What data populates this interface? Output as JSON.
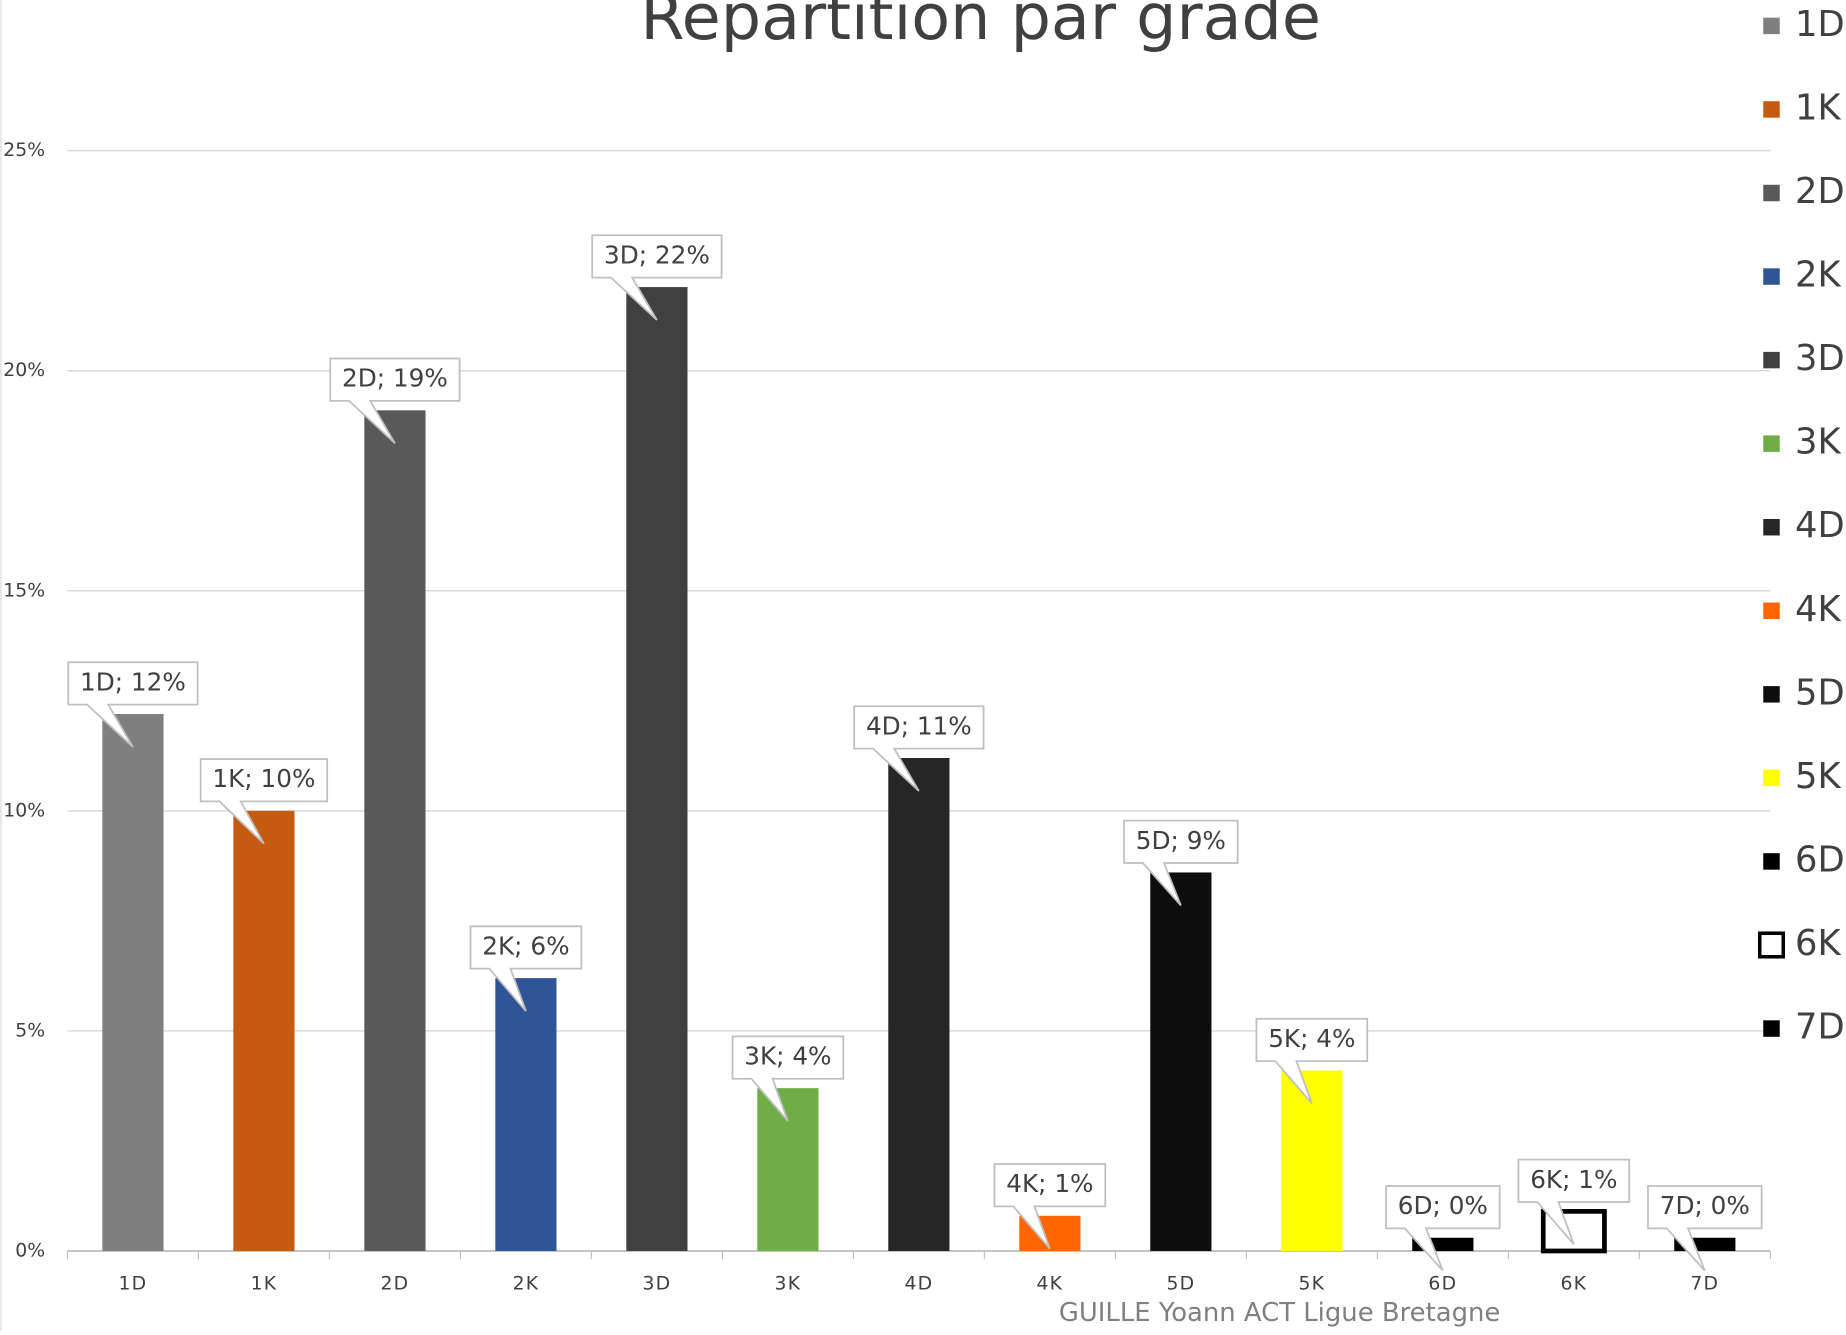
{
  "chart_data": {
    "type": "bar",
    "title": "Repartition par grade",
    "annotation": "GUILLE Yoann ACT Ligue Bretagne",
    "categories": [
      "1D",
      "1K",
      "2D",
      "2K",
      "3D",
      "3K",
      "4D",
      "4K",
      "5D",
      "5K",
      "6D",
      "6K",
      "7D"
    ],
    "values": [
      12.2,
      10.0,
      19.1,
      6.2,
      21.9,
      3.7,
      11.2,
      0.8,
      8.6,
      4.1,
      0.3,
      0.9,
      0.3
    ],
    "value_labels": [
      "1D; 12%",
      "1K; 10%",
      "2D; 19%",
      "2K; 6%",
      "3D; 22%",
      "3K; 4%",
      "4D; 11%",
      "4K; 1%",
      "5D; 9%",
      "5K; 4%",
      "6D; 0%",
      "6K; 1%",
      "7D; 0%"
    ],
    "colors": [
      "#7f7f7f",
      "#c55a11",
      "#595959",
      "#2f5597",
      "#404040",
      "#70ad47",
      "#262626",
      "#ff6600",
      "#0d0d0d",
      "#ffff00",
      "#000000",
      "#ffffff",
      "#000000"
    ],
    "ylim": [
      0,
      25
    ],
    "yticks": [
      {
        "value": 0,
        "label": "0%"
      },
      {
        "value": 5,
        "label": "5%"
      },
      {
        "value": 10,
        "label": "10%"
      },
      {
        "value": 15,
        "label": "15%"
      },
      {
        "value": 20,
        "label": "20%"
      },
      {
        "value": 25,
        "label": "25%"
      }
    ],
    "grid": true,
    "legend": "right"
  }
}
